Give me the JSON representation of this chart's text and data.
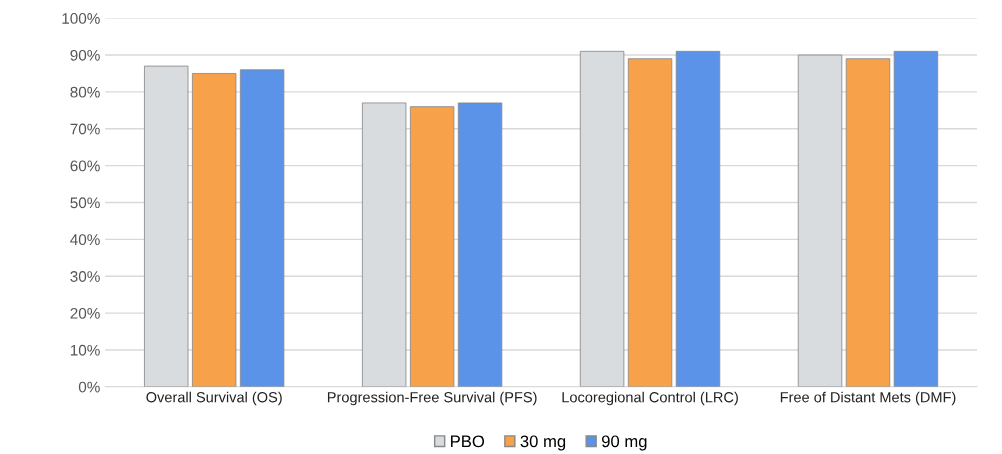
{
  "chart_data": {
    "type": "bar",
    "categories": [
      "Overall Survival (OS)",
      "Progression-Free Survival (PFS)",
      "Locoregional Control (LRC)",
      "Free of Distant Mets (DMF)"
    ],
    "series": [
      {
        "name": "PBO",
        "color": "#d9dcdf",
        "values": [
          87,
          77,
          91,
          90
        ]
      },
      {
        "name": "30 mg",
        "color": "#f7a14a",
        "values": [
          85,
          76,
          89,
          89
        ]
      },
      {
        "name": "90 mg",
        "color": "#5b93e8",
        "values": [
          86,
          77,
          91,
          91
        ]
      }
    ],
    "ylim": [
      0,
      100
    ],
    "yticks": [
      {
        "value": 0,
        "label": "0%"
      },
      {
        "value": 10,
        "label": "10%"
      },
      {
        "value": 20,
        "label": "20%"
      },
      {
        "value": 30,
        "label": "30%"
      },
      {
        "value": 40,
        "label": "40%"
      },
      {
        "value": 50,
        "label": "50%"
      },
      {
        "value": 60,
        "label": "60%"
      },
      {
        "value": 70,
        "label": "70%"
      },
      {
        "value": 80,
        "label": "80%"
      },
      {
        "value": 90,
        "label": "90%"
      },
      {
        "value": 100,
        "label": "100%"
      }
    ],
    "grid": "y",
    "legend": "bottom"
  }
}
